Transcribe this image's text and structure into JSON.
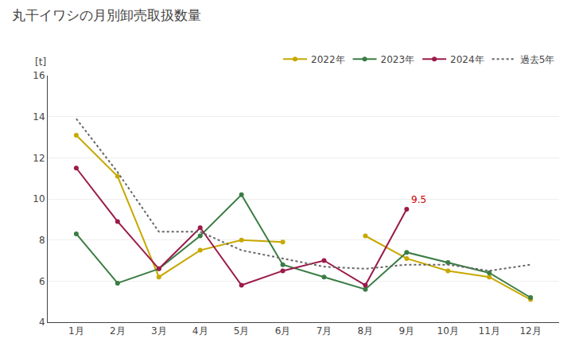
{
  "chart_data": {
    "type": "line",
    "title": "丸干イワシの月別卸売取扱数量",
    "ylabel": "[t]",
    "categories": [
      "1月",
      "2月",
      "3月",
      "4月",
      "5月",
      "6月",
      "7月",
      "8月",
      "9月",
      "10月",
      "11月",
      "12月"
    ],
    "series": [
      {
        "name": "2022年",
        "color": "#c8a800",
        "line_style": "solid",
        "marker": "circle",
        "values": [
          13.1,
          11.1,
          6.2,
          7.5,
          8.0,
          7.9,
          null,
          8.2,
          7.1,
          6.5,
          6.2,
          5.1
        ]
      },
      {
        "name": "2023年",
        "color": "#3a7d44",
        "line_style": "solid",
        "marker": "circle",
        "values": [
          8.3,
          5.9,
          6.6,
          8.2,
          10.2,
          6.8,
          6.2,
          5.6,
          7.4,
          6.9,
          6.4,
          5.2
        ]
      },
      {
        "name": "2024年",
        "color": "#9b1b4a",
        "line_style": "solid",
        "marker": "circle",
        "values": [
          11.5,
          8.9,
          6.6,
          8.6,
          5.8,
          6.5,
          7.0,
          5.8,
          9.5,
          null,
          null,
          null
        ]
      },
      {
        "name": "過去5年",
        "color": "#666666",
        "line_style": "dotted",
        "marker": "none",
        "values": [
          13.9,
          11.3,
          8.4,
          8.4,
          7.5,
          7.1,
          6.7,
          6.6,
          6.8,
          6.8,
          6.5,
          6.8
        ]
      }
    ],
    "annotations": [
      {
        "text": "9.5",
        "x": "9月",
        "y": 9.5,
        "color": "#cc0000"
      }
    ],
    "ylim": [
      4,
      16
    ],
    "yticks": [
      4,
      6,
      8,
      10,
      12,
      14,
      16
    ],
    "grid": true,
    "legend": "top right"
  }
}
